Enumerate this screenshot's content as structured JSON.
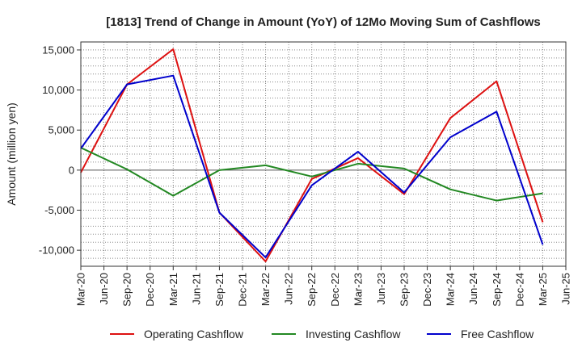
{
  "chart_data": {
    "type": "line",
    "title": "[1813]  Trend of Change in Amount (YoY) of 12Mo Moving Sum of Cashflows",
    "xlabel": "",
    "ylabel": "Amount (million yen)",
    "ylim": [
      -12000,
      16000
    ],
    "yticks": [
      15000,
      10000,
      5000,
      0,
      -5000,
      -10000
    ],
    "ytick_labels": [
      "15,000",
      "10,000",
      "5,000",
      "0",
      "-5,000",
      "-10,000"
    ],
    "x_tick_labels": [
      "Mar-20",
      "Jun-20",
      "Sep-20",
      "Dec-20",
      "Mar-21",
      "Jun-21",
      "Sep-21",
      "Dec-21",
      "Mar-22",
      "Jun-22",
      "Sep-22",
      "Dec-22",
      "Mar-23",
      "Jun-23",
      "Sep-23",
      "Dec-23",
      "Mar-24",
      "Jun-24",
      "Sep-24",
      "Dec-24",
      "Mar-25",
      "Jun-25"
    ],
    "x": [
      "Mar-20",
      "Sep-20",
      "Mar-21",
      "Sep-21",
      "Mar-22",
      "Sep-22",
      "Mar-23",
      "Sep-23",
      "Mar-24",
      "Sep-24",
      "Mar-25"
    ],
    "grid": true,
    "legend_position": "bottom",
    "series": [
      {
        "name": "Operating Cashflow",
        "color": "#dd1111",
        "values": [
          -300,
          10700,
          15100,
          -5300,
          -11400,
          -1100,
          1500,
          -3000,
          6500,
          11100,
          -6500
        ]
      },
      {
        "name": "Investing Cashflow",
        "color": "#228822",
        "values": [
          2800,
          100,
          -3200,
          0,
          600,
          -800,
          800,
          200,
          -2400,
          -3800,
          -2900
        ]
      },
      {
        "name": "Free Cashflow",
        "color": "#0000cc",
        "values": [
          2700,
          10700,
          11800,
          -5300,
          -10900,
          -1900,
          2300,
          -2800,
          4100,
          7300,
          -9300
        ]
      }
    ]
  }
}
